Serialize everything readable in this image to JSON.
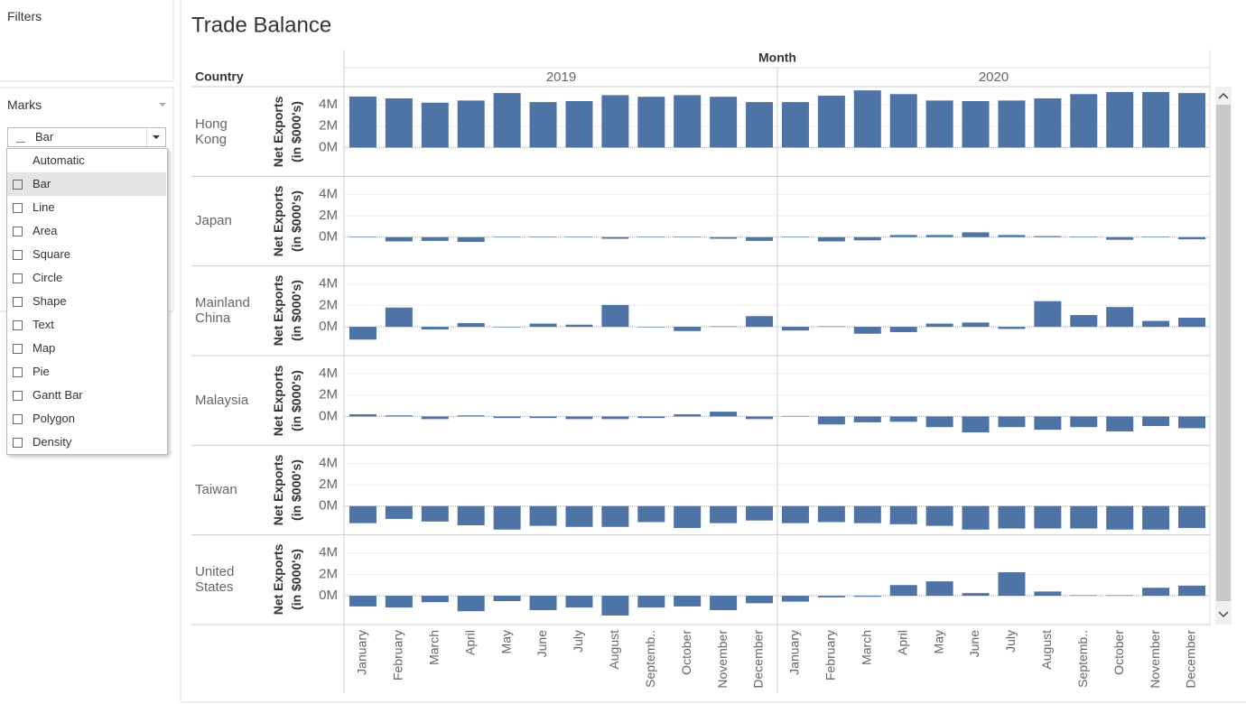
{
  "sidebar": {
    "filters": "Filters",
    "marks": "Marks",
    "mark_type": "Bar",
    "mark_options": [
      "Automatic",
      "Bar",
      "Line",
      "Area",
      "Square",
      "Circle",
      "Shape",
      "Text",
      "Map",
      "Pie",
      "Gantt Bar",
      "Polygon",
      "Density"
    ]
  },
  "chart_data": {
    "type": "bar",
    "title": "Trade Balance",
    "column_header": "Month",
    "row_header": "Country",
    "y_label": "Net Exports (in $000's)",
    "years": [
      "2019",
      "2020"
    ],
    "categories": [
      "January",
      "February",
      "March",
      "April",
      "May",
      "June",
      "July",
      "August",
      "Septemb..",
      "October",
      "November",
      "December",
      "January",
      "February",
      "March",
      "April",
      "May",
      "June",
      "July",
      "August",
      "Septemb..",
      "October",
      "November",
      "December"
    ],
    "color": "#4e74a6",
    "ylim": [
      -2700000,
      5700000
    ],
    "yticks": [
      {
        "value": 0,
        "label": "0M"
      },
      {
        "value": 2000000,
        "label": "2M"
      },
      {
        "value": 4000000,
        "label": "4M"
      }
    ],
    "series": [
      {
        "name": "Hong Kong",
        "values": [
          4770000,
          4600000,
          4200000,
          4400000,
          5100000,
          4250000,
          4350000,
          4900000,
          4750000,
          4900000,
          4750000,
          4250000,
          4250000,
          4850000,
          5350000,
          5000000,
          4400000,
          4350000,
          4400000,
          4600000,
          5000000,
          5200000,
          5200000,
          5100000
        ]
      },
      {
        "name": "Japan",
        "values": [
          50000,
          -400000,
          -350000,
          -450000,
          50000,
          50000,
          50000,
          -150000,
          50000,
          50000,
          -150000,
          -350000,
          50000,
          -400000,
          -300000,
          200000,
          200000,
          450000,
          200000,
          100000,
          50000,
          -250000,
          50000,
          -200000
        ]
      },
      {
        "name": "Mainland China",
        "values": [
          -1200000,
          1800000,
          -250000,
          350000,
          -50000,
          300000,
          200000,
          2050000,
          -50000,
          -400000,
          50000,
          1000000,
          -350000,
          50000,
          -650000,
          -500000,
          300000,
          400000,
          -200000,
          2400000,
          1100000,
          1850000,
          550000,
          850000
        ]
      },
      {
        "name": "Malaysia",
        "values": [
          200000,
          100000,
          -250000,
          100000,
          -150000,
          -150000,
          -250000,
          -250000,
          -150000,
          200000,
          450000,
          -250000,
          50000,
          -750000,
          -550000,
          -500000,
          -1000000,
          -1500000,
          -1000000,
          -1250000,
          -1000000,
          -1400000,
          -900000,
          -1100000
        ]
      },
      {
        "name": "Taiwan",
        "values": [
          -1600000,
          -1200000,
          -1450000,
          -1800000,
          -2200000,
          -1850000,
          -1950000,
          -1950000,
          -1500000,
          -2050000,
          -1600000,
          -1350000,
          -1600000,
          -1500000,
          -1600000,
          -1700000,
          -1850000,
          -2200000,
          -2100000,
          -2100000,
          -2100000,
          -2200000,
          -2200000,
          -2050000
        ]
      },
      {
        "name": "United States",
        "values": [
          -1000000,
          -1100000,
          -600000,
          -1450000,
          -500000,
          -1350000,
          -1100000,
          -1850000,
          -1100000,
          -1000000,
          -1350000,
          -700000,
          -550000,
          -150000,
          -100000,
          1000000,
          1350000,
          250000,
          2200000,
          400000,
          50000,
          50000,
          750000,
          950000
        ]
      }
    ]
  }
}
